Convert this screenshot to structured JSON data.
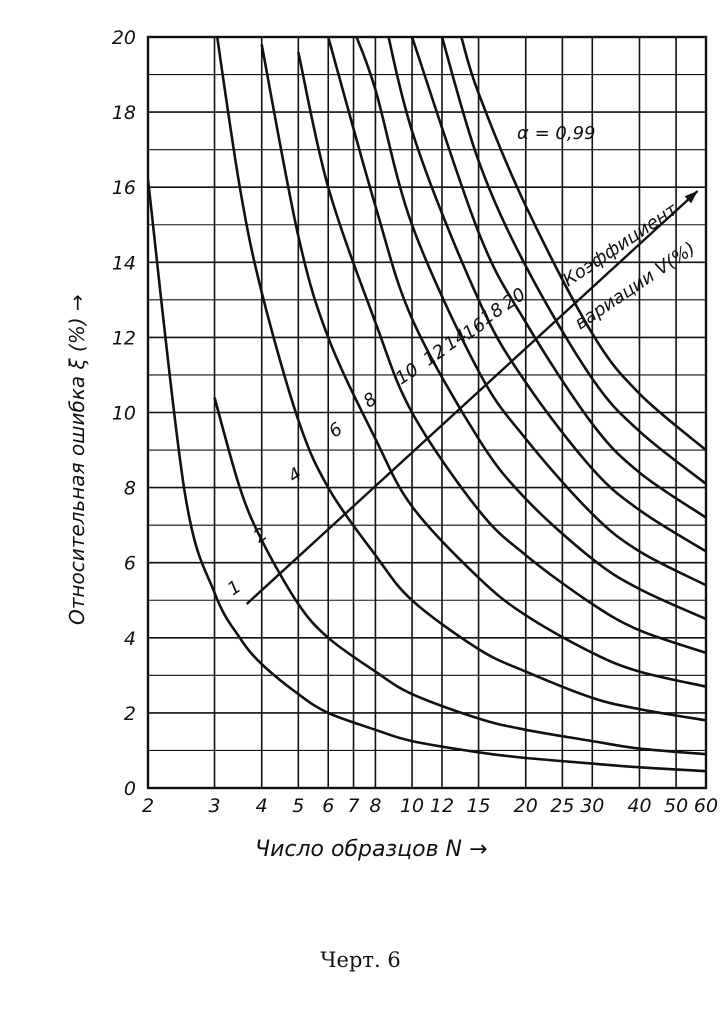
{
  "chart_data": {
    "type": "line",
    "ylabel": "Относительная   ошибка  ξ (%)  →",
    "xlabel": "Число образцов  N  →",
    "x_scale": "log",
    "xlim": [
      2,
      60
    ],
    "ylim": [
      0,
      20
    ],
    "x_ticks": [
      2,
      3,
      4,
      5,
      6,
      7,
      8,
      10,
      12,
      15,
      20,
      25,
      30,
      40,
      50,
      60
    ],
    "x_tick_labels": [
      "2",
      "3",
      "4",
      "5",
      "6",
      "7",
      "8",
      "10",
      "12",
      "15",
      "20",
      "25",
      "30",
      "40",
      "50",
      "60"
    ],
    "y_ticks": [
      0,
      2,
      4,
      6,
      8,
      10,
      12,
      14,
      16,
      18,
      20
    ],
    "y_tick_labels": [
      "0",
      "2",
      "4",
      "6",
      "8",
      "10",
      "12",
      "14",
      "16",
      "18",
      "20"
    ],
    "grid": true,
    "confidence_label": "α = 0,99",
    "arrow_label_line1": "Коэффициент",
    "arrow_label_line2": "вариации V(%)",
    "series": [
      {
        "name": "1",
        "x": [
          2,
          2.5,
          3,
          3.5,
          4,
          5,
          6,
          8,
          10,
          15,
          20,
          30,
          40,
          60
        ],
        "y": [
          16.2,
          7.9,
          5.2,
          4.0,
          3.3,
          2.5,
          2.0,
          1.55,
          1.25,
          0.95,
          0.8,
          0.65,
          0.55,
          0.45
        ]
      },
      {
        "name": "2",
        "x": [
          3,
          3.5,
          4,
          5,
          6,
          8,
          10,
          15,
          20,
          30,
          40,
          60
        ],
        "y": [
          10.4,
          8.0,
          6.6,
          4.9,
          4.0,
          3.1,
          2.5,
          1.85,
          1.55,
          1.25,
          1.05,
          0.9
        ]
      },
      {
        "name": "4",
        "x": [
          3,
          3.5,
          4,
          5,
          6,
          8,
          10,
          15,
          20,
          30,
          40,
          60
        ],
        "y": [
          20.5,
          16.0,
          13.2,
          9.8,
          8.0,
          6.2,
          5.0,
          3.7,
          3.1,
          2.4,
          2.1,
          1.8
        ]
      },
      {
        "name": "6",
        "x": [
          4,
          5,
          6,
          8,
          10,
          15,
          20,
          30,
          40,
          60
        ],
        "y": [
          19.8,
          14.7,
          12.0,
          9.3,
          7.5,
          5.6,
          4.6,
          3.6,
          3.1,
          2.7
        ]
      },
      {
        "name": "8",
        "x": [
          5,
          6,
          8,
          10,
          15,
          20,
          30,
          40,
          60
        ],
        "y": [
          19.6,
          16.0,
          12.4,
          10.0,
          7.4,
          6.2,
          4.9,
          4.2,
          3.6
        ]
      },
      {
        "name": "10",
        "x": [
          6,
          8,
          10,
          15,
          20,
          30,
          40,
          60
        ],
        "y": [
          20.0,
          15.5,
          12.5,
          9.3,
          7.7,
          6.1,
          5.3,
          4.5
        ]
      },
      {
        "name": "12",
        "x": [
          7,
          8,
          10,
          15,
          20,
          30,
          40,
          60
        ],
        "y": [
          20.2,
          18.6,
          15.0,
          11.1,
          9.3,
          7.3,
          6.3,
          5.4
        ]
      },
      {
        "name": "14",
        "x": [
          8,
          10,
          15,
          20,
          30,
          40,
          60
        ],
        "y": [
          21.7,
          17.5,
          13.0,
          10.8,
          8.5,
          7.4,
          6.3
        ]
      },
      {
        "name": "16",
        "x": [
          10,
          15,
          20,
          30,
          40,
          60
        ],
        "y": [
          20.0,
          14.8,
          12.4,
          9.7,
          8.4,
          7.2
        ]
      },
      {
        "name": "18",
        "x": [
          12,
          15,
          20,
          30,
          40,
          60
        ],
        "y": [
          20.0,
          16.7,
          13.9,
          10.9,
          9.5,
          8.1
        ]
      },
      {
        "name": "20",
        "x": [
          13.5,
          15,
          20,
          30,
          40,
          60
        ],
        "y": [
          20.0,
          18.5,
          15.5,
          12.1,
          10.5,
          9.0
        ]
      }
    ]
  },
  "caption": "Черт. 6"
}
